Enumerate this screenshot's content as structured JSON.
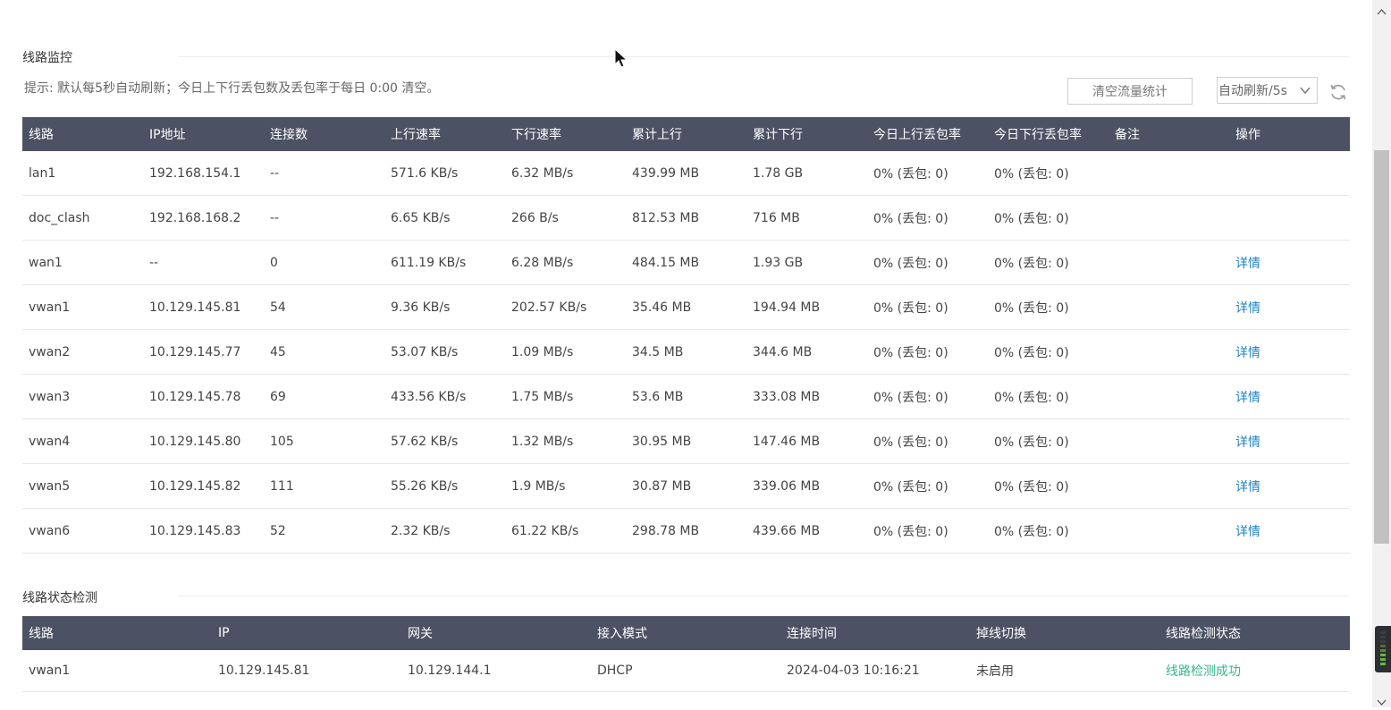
{
  "monitor": {
    "title": "线路监控",
    "hint": "提示: 默认每5秒自动刷新；今日上下行丢包数及丢包率于每日 0:00 清空。",
    "clear_button": "清空流量统计",
    "refresh_select": "自动刷新/5s",
    "columns": [
      "线路",
      "IP地址",
      "连接数",
      "上行速率",
      "下行速率",
      "累计上行",
      "累计下行",
      "今日上行丢包率",
      "今日下行丢包率",
      "备注",
      "操作"
    ],
    "rows": [
      {
        "line": "lan1",
        "ip": "192.168.154.1",
        "conn": "--",
        "up": "571.6 KB/s",
        "down": "6.32 MB/s",
        "total_up": "439.99 MB",
        "total_down": "1.78 GB",
        "up_loss": "0% (丢包: 0)",
        "down_loss": "0% (丢包: 0)",
        "note": "",
        "action": ""
      },
      {
        "line": "doc_clash",
        "ip": "192.168.168.2",
        "conn": "--",
        "up": "6.65 KB/s",
        "down": "266 B/s",
        "total_up": "812.53 MB",
        "total_down": "716 MB",
        "up_loss": "0% (丢包: 0)",
        "down_loss": "0% (丢包: 0)",
        "note": "",
        "action": ""
      },
      {
        "line": "wan1",
        "ip": "--",
        "conn": "0",
        "up": "611.19 KB/s",
        "down": "6.28 MB/s",
        "total_up": "484.15 MB",
        "total_down": "1.93 GB",
        "up_loss": "0% (丢包: 0)",
        "down_loss": "0% (丢包: 0)",
        "note": "",
        "action": "详情"
      },
      {
        "line": "vwan1",
        "ip": "10.129.145.81",
        "conn": "54",
        "up": "9.36 KB/s",
        "down": "202.57 KB/s",
        "total_up": "35.46 MB",
        "total_down": "194.94 MB",
        "up_loss": "0% (丢包: 0)",
        "down_loss": "0% (丢包: 0)",
        "note": "",
        "action": "详情"
      },
      {
        "line": "vwan2",
        "ip": "10.129.145.77",
        "conn": "45",
        "up": "53.07 KB/s",
        "down": "1.09 MB/s",
        "total_up": "34.5 MB",
        "total_down": "344.6 MB",
        "up_loss": "0% (丢包: 0)",
        "down_loss": "0% (丢包: 0)",
        "note": "",
        "action": "详情"
      },
      {
        "line": "vwan3",
        "ip": "10.129.145.78",
        "conn": "69",
        "up": "433.56 KB/s",
        "down": "1.75 MB/s",
        "total_up": "53.6 MB",
        "total_down": "333.08 MB",
        "up_loss": "0% (丢包: 0)",
        "down_loss": "0% (丢包: 0)",
        "note": "",
        "action": "详情"
      },
      {
        "line": "vwan4",
        "ip": "10.129.145.80",
        "conn": "105",
        "up": "57.62 KB/s",
        "down": "1.32 MB/s",
        "total_up": "30.95 MB",
        "total_down": "147.46 MB",
        "up_loss": "0% (丢包: 0)",
        "down_loss": "0% (丢包: 0)",
        "note": "",
        "action": "详情"
      },
      {
        "line": "vwan5",
        "ip": "10.129.145.82",
        "conn": "111",
        "up": "55.26 KB/s",
        "down": "1.9 MB/s",
        "total_up": "30.87 MB",
        "total_down": "339.06 MB",
        "up_loss": "0% (丢包: 0)",
        "down_loss": "0% (丢包: 0)",
        "note": "",
        "action": "详情"
      },
      {
        "line": "vwan6",
        "ip": "10.129.145.83",
        "conn": "52",
        "up": "2.32 KB/s",
        "down": "61.22 KB/s",
        "total_up": "298.78 MB",
        "total_down": "439.66 MB",
        "up_loss": "0% (丢包: 0)",
        "down_loss": "0% (丢包: 0)",
        "note": "",
        "action": "详情"
      }
    ]
  },
  "status": {
    "title": "线路状态检测",
    "columns": [
      "线路",
      "IP",
      "网关",
      "接入模式",
      "连接时间",
      "掉线切换",
      "线路检测状态"
    ],
    "rows": [
      {
        "line": "vwan1",
        "ip": "10.129.145.81",
        "gateway": "10.129.144.1",
        "mode": "DHCP",
        "time": "2024-04-03 10:16:21",
        "failover": "未启用",
        "state": "线路检测成功"
      }
    ]
  },
  "colors": {
    "header_bg": "#4c5264",
    "link": "#1f82c0",
    "success": "#35b88a"
  },
  "icons": {
    "refresh": "refresh-icon",
    "dropdown": "chevron-down-icon",
    "cursor": "mouse-cursor-icon"
  }
}
